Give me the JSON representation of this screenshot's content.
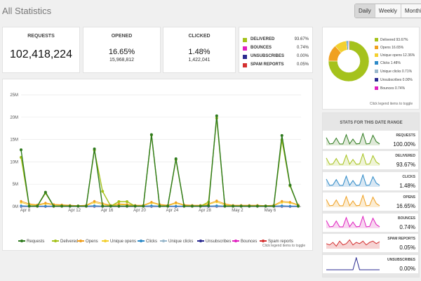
{
  "page": {
    "title": "All Statistics"
  },
  "period": {
    "daily": "Daily",
    "weekly": "Weekly",
    "monthly": "Monthly"
  },
  "summary": {
    "requests": {
      "label": "REQUESTS",
      "value": "102,418,224"
    },
    "opened": {
      "label": "OPENED",
      "percent": "16.65%",
      "count": "15,968,812"
    },
    "clicked": {
      "label": "CLICKED",
      "percent": "1.48%",
      "count": "1,422,041"
    }
  },
  "delivery_legend": [
    {
      "name": "DELIVERED",
      "value": "93.67%",
      "color": "#a5c21c"
    },
    {
      "name": "BOUNCES",
      "value": "0.74%",
      "color": "#e020c0"
    },
    {
      "name": "UNSUBSCRIBES",
      "value": "0.00%",
      "color": "#2a2a90"
    },
    {
      "name": "SPAM REPORTS",
      "value": "0.05%",
      "color": "#d43030"
    }
  ],
  "pie_legend": [
    {
      "name": "Delivered 93.67%",
      "color": "#a5c21c"
    },
    {
      "name": "Opens 16.65%",
      "color": "#f0a020"
    },
    {
      "name": "Unique opens 12.36%",
      "color": "#f3d030"
    },
    {
      "name": "Clicks 1.48%",
      "color": "#2d8ac8"
    },
    {
      "name": "Unique clicks 0.71%",
      "color": "#9ab8cc"
    },
    {
      "name": "Unsubscribes 0.00%",
      "color": "#2a2a90"
    },
    {
      "name": "Bounces 0.74%",
      "color": "#e020c0"
    }
  ],
  "pie_hint": "Click legend items to toggle",
  "chart_hint": "Click legend items to toggle",
  "range": {
    "title": "STATS FOR THIS DATE RANGE",
    "rows": [
      {
        "label": "REQUESTS",
        "value": "100.00%",
        "color": "#2e7a1e",
        "fill": "#dfe9d8",
        "shape": "peaks"
      },
      {
        "label": "DELIVERED",
        "value": "93.67%",
        "color": "#a5c21c",
        "fill": "#eff4d6",
        "shape": "peaks"
      },
      {
        "label": "CLICKS",
        "value": "1.48%",
        "color": "#2d8ac8",
        "fill": "#d8e7f3",
        "shape": "peaks"
      },
      {
        "label": "OPENS",
        "value": "16.65%",
        "color": "#f0a020",
        "fill": "#fbecd2",
        "shape": "peaks"
      },
      {
        "label": "BOUNCES",
        "value": "0.74%",
        "color": "#e020c0",
        "fill": "#f8d6f0",
        "shape": "peaks"
      },
      {
        "label": "SPAM REPORTS",
        "value": "0.05%",
        "color": "#d43030",
        "fill": "#f6d3d3",
        "shape": "noisy"
      },
      {
        "label": "UNSUBSCRIBES",
        "value": "0.00%",
        "color": "#2a2a90",
        "fill": "#ffffff",
        "shape": "spike"
      }
    ]
  },
  "chart_data": {
    "type": "line",
    "y_ticks": [
      "0M",
      "5M",
      "10M",
      "15M",
      "20M",
      "25M"
    ],
    "ylim": [
      0,
      25
    ],
    "x_ticks": [
      "Apr 8",
      "Apr 12",
      "Apr 16",
      "Apr 20",
      "Apr 24",
      "Apr 28",
      "May 2",
      "May 6"
    ],
    "n_points": 35,
    "series": [
      {
        "name": "Requests",
        "color": "#2e7a1e",
        "values": [
          12.7,
          0.1,
          0.1,
          3.2,
          0.1,
          0.1,
          0.1,
          0.1,
          0.1,
          12.9,
          0.1,
          0.1,
          0.1,
          0.1,
          0.1,
          0.1,
          16.1,
          0.1,
          0.1,
          10.7,
          0.1,
          0.1,
          0.1,
          0.2,
          20.3,
          0.1,
          0.1,
          0.1,
          0.1,
          0.1,
          0.1,
          0.1,
          15.9,
          4.8,
          0.1
        ]
      },
      {
        "name": "Delivered",
        "color": "#a5c21c",
        "values": [
          11.0,
          0.1,
          0.1,
          3.0,
          0.1,
          0.1,
          0.1,
          0.1,
          0.1,
          12.6,
          3.4,
          0.1,
          1.1,
          1.1,
          0.1,
          0.1,
          16.0,
          0.1,
          0.1,
          10.5,
          0.1,
          0.1,
          0.1,
          1.0,
          19.8,
          0.1,
          0.1,
          0.1,
          0.1,
          0.1,
          0.1,
          0.1,
          14.9,
          4.6,
          0.1
        ]
      },
      {
        "name": "Opens",
        "color": "#f0a020",
        "values": [
          1.2,
          0.6,
          0.4,
          0.8,
          0.5,
          0.4,
          0.3,
          0.2,
          0.3,
          1.2,
          0.7,
          0.3,
          0.6,
          0.5,
          0.3,
          0.3,
          1.0,
          0.5,
          0.3,
          0.9,
          0.4,
          0.3,
          0.3,
          0.6,
          1.3,
          0.6,
          0.3,
          0.3,
          0.3,
          0.3,
          0.2,
          0.3,
          1.2,
          1.0,
          0.4
        ]
      },
      {
        "name": "Unique opens",
        "color": "#f3d030",
        "values": [
          0.9,
          0.4,
          0.3,
          0.6,
          0.4,
          0.3,
          0.2,
          0.2,
          0.2,
          0.9,
          0.5,
          0.2,
          0.4,
          0.4,
          0.2,
          0.2,
          0.8,
          0.4,
          0.2,
          0.7,
          0.3,
          0.2,
          0.2,
          0.5,
          1.0,
          0.4,
          0.2,
          0.2,
          0.2,
          0.2,
          0.2,
          0.2,
          0.9,
          0.8,
          0.3
        ]
      },
      {
        "name": "Clicks",
        "color": "#2d8ac8",
        "values": [
          0.2,
          0.1,
          0.1,
          0.1,
          0.1,
          0.1,
          0.1,
          0.1,
          0.1,
          0.2,
          0.1,
          0.1,
          0.1,
          0.1,
          0.1,
          0.1,
          0.2,
          0.1,
          0.1,
          0.1,
          0.1,
          0.1,
          0.1,
          0.1,
          0.2,
          0.1,
          0.1,
          0.1,
          0.1,
          0.1,
          0.1,
          0.1,
          0.2,
          0.1,
          0.1
        ]
      },
      {
        "name": "Unique clicks",
        "color": "#9ab8cc",
        "values": [
          0.1,
          0.1,
          0.1,
          0.1,
          0.1,
          0.1,
          0.1,
          0.1,
          0.1,
          0.1,
          0.1,
          0.1,
          0.1,
          0.1,
          0.1,
          0.1,
          0.1,
          0.1,
          0.1,
          0.1,
          0.1,
          0.1,
          0.1,
          0.1,
          0.1,
          0.1,
          0.1,
          0.1,
          0.1,
          0.1,
          0.1,
          0.1,
          0.1,
          0.1,
          0.1
        ]
      },
      {
        "name": "Unsubscribes",
        "color": "#2a2a90",
        "values": [
          0,
          0,
          0,
          0,
          0,
          0,
          0,
          0,
          0,
          0,
          0,
          0,
          0,
          0,
          0,
          0,
          0,
          0,
          0,
          0,
          0,
          0,
          0,
          0,
          0,
          0,
          0,
          0,
          0,
          0,
          0,
          0,
          0,
          0,
          0
        ]
      },
      {
        "name": "Bounces",
        "color": "#e020c0",
        "values": [
          0.1,
          0.1,
          0.1,
          0.1,
          0.1,
          0.1,
          0.1,
          0.1,
          0.1,
          0.1,
          0.1,
          0.1,
          0.1,
          0.1,
          0.1,
          0.1,
          0.1,
          0.1,
          0.1,
          0.1,
          0.1,
          0.1,
          0.1,
          0.1,
          0.1,
          0.1,
          0.1,
          0.1,
          0.1,
          0.1,
          0.1,
          0.1,
          0.1,
          0.1,
          0.1
        ]
      },
      {
        "name": "Spam reports",
        "color": "#d43030",
        "values": [
          0,
          0,
          0,
          0,
          0,
          0,
          0,
          0,
          0,
          0,
          0,
          0,
          0,
          0,
          0,
          0,
          0,
          0,
          0,
          0,
          0,
          0,
          0,
          0,
          0,
          0,
          0,
          0,
          0,
          0,
          0,
          0,
          0,
          0,
          0
        ]
      }
    ]
  },
  "pie_data": {
    "type": "pie",
    "slices": [
      {
        "name": "Delivered",
        "value": 93.67,
        "color": "#a5c21c"
      },
      {
        "name": "Opens",
        "value": 16.65,
        "color": "#f0a020"
      },
      {
        "name": "Unique opens",
        "value": 12.36,
        "color": "#f3d030"
      },
      {
        "name": "Clicks",
        "value": 1.48,
        "color": "#2d8ac8"
      },
      {
        "name": "Unique clicks",
        "value": 0.71,
        "color": "#9ab8cc"
      },
      {
        "name": "Unsubscribes",
        "value": 0.0,
        "color": "#2a2a90"
      },
      {
        "name": "Bounces",
        "value": 0.74,
        "color": "#e020c0"
      }
    ]
  }
}
